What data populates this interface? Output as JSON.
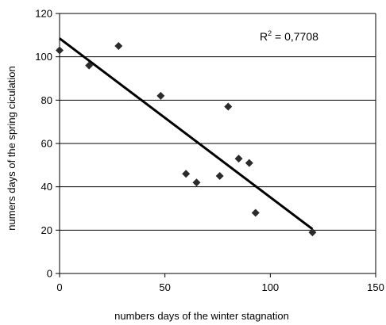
{
  "chart_data": {
    "type": "scatter",
    "xlabel": "numbers days of the winter stagnation",
    "ylabel": "numers days of the spring ciculation",
    "xlim": [
      0,
      150
    ],
    "ylim": [
      0,
      120
    ],
    "x_ticks": [
      0,
      50,
      100,
      150
    ],
    "y_ticks": [
      0,
      20,
      40,
      60,
      80,
      100,
      120
    ],
    "grid": "horizontal",
    "legend": "none",
    "points": [
      {
        "x": 0,
        "y": 103
      },
      {
        "x": 14,
        "y": 96
      },
      {
        "x": 28,
        "y": 105
      },
      {
        "x": 48,
        "y": 82
      },
      {
        "x": 60,
        "y": 46
      },
      {
        "x": 65,
        "y": 42
      },
      {
        "x": 76,
        "y": 45
      },
      {
        "x": 80,
        "y": 77
      },
      {
        "x": 85,
        "y": 53
      },
      {
        "x": 90,
        "y": 51
      },
      {
        "x": 93,
        "y": 28
      },
      {
        "x": 120,
        "y": 19
      }
    ],
    "trendline": {
      "type": "linear",
      "from": {
        "x": 0,
        "y": 108.5
      },
      "to": {
        "x": 120,
        "y": 20.5
      }
    },
    "annotation": {
      "r2_prefix": "R",
      "r2_superscript": "2",
      "r2_value": " = 0,7708"
    },
    "colors": {
      "marker": "#2b2b2b",
      "trendline": "#000000",
      "grid": "#000000",
      "axis": "#000000"
    }
  }
}
